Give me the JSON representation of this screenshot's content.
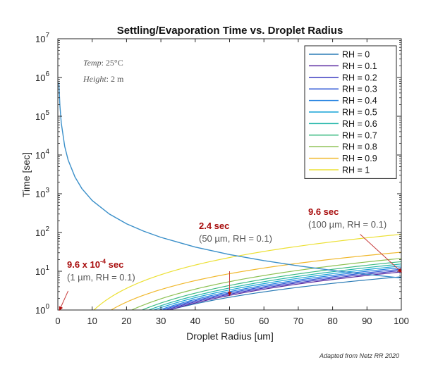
{
  "chart_data": {
    "type": "line",
    "title": "Settling/Evaporation Time vs. Droplet Radius",
    "xlabel": "Droplet Radius [um]",
    "ylabel": "Time [sec]",
    "xlim": [
      0,
      100
    ],
    "ylim_log10": [
      0,
      7
    ],
    "y_scale": "log",
    "x_ticks": [
      "0",
      "10",
      "20",
      "30",
      "40",
      "50",
      "60",
      "70",
      "80",
      "90",
      "100"
    ],
    "y_tick_exponents": [
      "0",
      "1",
      "2",
      "3",
      "4",
      "5",
      "6",
      "7"
    ],
    "y_tick_base": "10",
    "grid": false,
    "legend_position": "top-right",
    "conditions": {
      "temp_label": "Temp",
      "temp_value": "25°C",
      "height_label": "Height",
      "height_value": "2 m"
    },
    "settling_series": {
      "name": "Settling time",
      "color": "#3a8fc9",
      "points": [
        [
          0.3,
          740000
        ],
        [
          0.6,
          190000
        ],
        [
          1,
          67000
        ],
        [
          2,
          16700
        ],
        [
          3,
          7400
        ],
        [
          5,
          2700
        ],
        [
          7,
          1360
        ],
        [
          10,
          670
        ],
        [
          15,
          300
        ],
        [
          20,
          168
        ],
        [
          25,
          108
        ],
        [
          30,
          75
        ],
        [
          40,
          42
        ],
        [
          50,
          27
        ],
        [
          60,
          18.8
        ],
        [
          70,
          13.8
        ],
        [
          80,
          10.5
        ],
        [
          90,
          8.3
        ],
        [
          100,
          6.7
        ]
      ]
    },
    "series": [
      {
        "name": "RH = 0",
        "color": "#2a7bb6",
        "x_start": 32.5,
        "value_at_100": 7.2
      },
      {
        "name": "RH = 0.1",
        "color": "#5a2aa0",
        "x_start": 32.5,
        "value_at_100": 9.6
      },
      {
        "name": "RH = 0.2",
        "color": "#3b3bc0",
        "x_start": 31.5,
        "value_at_100": 10.4
      },
      {
        "name": "RH = 0.3",
        "color": "#2f57d6",
        "x_start": 30.5,
        "value_at_100": 11.3
      },
      {
        "name": "RH = 0.4",
        "color": "#1f7fe0",
        "x_start": 29.5,
        "value_at_100": 12.4
      },
      {
        "name": "RH = 0.5",
        "color": "#17a3d6",
        "x_start": 28,
        "value_at_100": 13.7
      },
      {
        "name": "RH = 0.6",
        "color": "#21b5a9",
        "x_start": 26.5,
        "value_at_100": 15.4
      },
      {
        "name": "RH = 0.7",
        "color": "#3dbb83",
        "x_start": 24.5,
        "value_at_100": 17.7
      },
      {
        "name": "RH = 0.8",
        "color": "#8cc152",
        "x_start": 21.5,
        "value_at_100": 21.5
      },
      {
        "name": "RH = 0.9",
        "color": "#f0b82c",
        "x_start": 15.5,
        "value_at_100": 31
      },
      {
        "name": "RH = 1",
        "color": "#ece033",
        "x_start": 10.5,
        "value_at_100": 90
      }
    ],
    "annotations": [
      {
        "value_text": "9.6 x 10",
        "value_exp": "-4",
        "value_unit": "sec",
        "detail": "(1 µm, RH = 0.1)",
        "arrow_from": [
          3,
          3.1
        ],
        "arrow_to": [
          0.5,
          1.0
        ]
      },
      {
        "value_text": "2.4 sec",
        "detail": "(50 µm, RH = 0.1)",
        "arrow_from": [
          50,
          10
        ],
        "arrow_to": [
          50,
          2.4
        ]
      },
      {
        "value_text": "9.6 sec",
        "detail": "(100 µm, RH = 0.1)",
        "arrow_from": [
          88,
          90
        ],
        "arrow_to": [
          100,
          9.6
        ]
      }
    ],
    "annotation_color": "#a80d0d",
    "detail_color": "#555555"
  },
  "credit": "Adapted from Netz RR 2020"
}
